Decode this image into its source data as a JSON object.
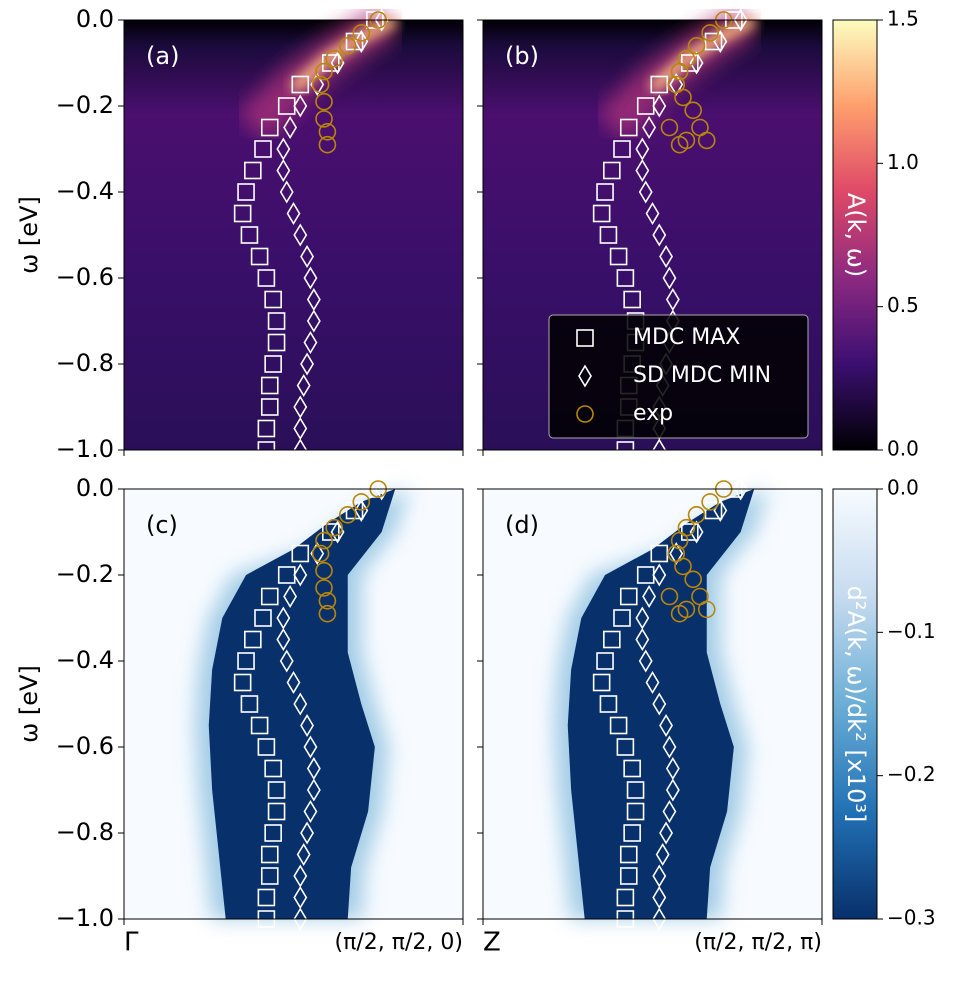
{
  "chart_data": [
    {
      "type": "scatter",
      "panel_label": "(a)",
      "ylabel": "ω [eV]",
      "background": "magma",
      "xlim": [
        0,
        1
      ],
      "xticks": [
        0,
        1
      ],
      "ylim": [
        -1,
        0
      ],
      "yticks": [
        {
          "value": 0,
          "label": "0.0"
        },
        {
          "value": -0.2,
          "label": "−0.2"
        },
        {
          "value": -0.4,
          "label": "−0.4"
        },
        {
          "value": -0.6,
          "label": "−0.6"
        },
        {
          "value": -0.8,
          "label": "−0.8"
        },
        {
          "value": -1,
          "label": "−1.0"
        }
      ],
      "series": [
        {
          "marker": "square",
          "color": "#ffffff",
          "x": [
            0.74,
            0.68,
            0.61,
            0.52,
            0.48,
            0.43,
            0.41,
            0.38,
            0.36,
            0.35,
            0.37,
            0.4,
            0.42,
            0.44,
            0.45,
            0.45,
            0.44,
            0.43,
            0.43,
            0.42,
            0.42
          ],
          "values": [
            0,
            -0.05,
            -0.1,
            -0.15,
            -0.2,
            -0.25,
            -0.3,
            -0.35,
            -0.4,
            -0.45,
            -0.5,
            -0.55,
            -0.6,
            -0.65,
            -0.7,
            -0.75,
            -0.8,
            -0.85,
            -0.9,
            -0.95,
            -1
          ]
        },
        {
          "marker": "diamond",
          "color": "#ffffff",
          "x": [
            0.76,
            0.7,
            0.63,
            0.57,
            0.52,
            0.49,
            0.47,
            0.47,
            0.48,
            0.5,
            0.52,
            0.54,
            0.55,
            0.56,
            0.56,
            0.55,
            0.54,
            0.53,
            0.52,
            0.52,
            0.52
          ],
          "values": [
            0,
            -0.05,
            -0.1,
            -0.15,
            -0.2,
            -0.25,
            -0.3,
            -0.35,
            -0.4,
            -0.45,
            -0.5,
            -0.55,
            -0.6,
            -0.65,
            -0.7,
            -0.75,
            -0.8,
            -0.85,
            -0.9,
            -0.95,
            -1
          ]
        },
        {
          "marker": "circle",
          "color": "#b8860b",
          "x": [
            0.75,
            0.7,
            0.66,
            0.62,
            0.59,
            0.58,
            0.59,
            0.59,
            0.6,
            0.6
          ],
          "values": [
            0,
            -0.03,
            -0.06,
            -0.09,
            -0.12,
            -0.15,
            -0.19,
            -0.23,
            -0.26,
            -0.29
          ]
        }
      ]
    },
    {
      "type": "scatter",
      "panel_label": "(b)",
      "background": "magma",
      "legend": "lower right",
      "xlim": [
        0,
        1
      ],
      "xticks": [
        0,
        1
      ],
      "ylim": [
        -1,
        0
      ],
      "yticks": [
        0,
        -0.2,
        -0.4,
        -0.6,
        -0.8,
        -1
      ],
      "series": [
        {
          "name": "MDC MAX",
          "marker": "square",
          "color": "#ffffff",
          "x": [
            0.74,
            0.68,
            0.61,
            0.52,
            0.48,
            0.43,
            0.41,
            0.38,
            0.36,
            0.35,
            0.37,
            0.4,
            0.42,
            0.44,
            0.45,
            0.45,
            0.44,
            0.43,
            0.43,
            0.42,
            0.42
          ],
          "values": [
            0,
            -0.05,
            -0.1,
            -0.15,
            -0.2,
            -0.25,
            -0.3,
            -0.35,
            -0.4,
            -0.45,
            -0.5,
            -0.55,
            -0.6,
            -0.65,
            -0.7,
            -0.75,
            -0.8,
            -0.85,
            -0.9,
            -0.95,
            -1
          ]
        },
        {
          "name": "SD MDC MIN",
          "marker": "diamond",
          "color": "#ffffff",
          "x": [
            0.76,
            0.7,
            0.63,
            0.57,
            0.52,
            0.49,
            0.47,
            0.47,
            0.48,
            0.5,
            0.52,
            0.54,
            0.55,
            0.56,
            0.56,
            0.55,
            0.54,
            0.53,
            0.52,
            0.52,
            0.52
          ],
          "values": [
            0,
            -0.05,
            -0.1,
            -0.15,
            -0.2,
            -0.25,
            -0.3,
            -0.35,
            -0.4,
            -0.45,
            -0.5,
            -0.55,
            -0.6,
            -0.65,
            -0.7,
            -0.75,
            -0.8,
            -0.85,
            -0.9,
            -0.95,
            -1
          ]
        },
        {
          "name": "exp",
          "marker": "circle",
          "color": "#b8860b",
          "x": [
            0.71,
            0.67,
            0.63,
            0.6,
            0.58,
            0.57,
            0.59,
            0.62,
            0.55,
            0.64,
            0.6,
            0.66,
            0.58
          ],
          "values": [
            0,
            -0.03,
            -0.06,
            -0.09,
            -0.12,
            -0.15,
            -0.18,
            -0.21,
            -0.25,
            -0.25,
            -0.28,
            -0.28,
            -0.29
          ]
        }
      ]
    },
    {
      "type": "scatter",
      "panel_label": "(c)",
      "ylabel": "ω [eV]",
      "background": "blues",
      "xlim": [
        0,
        1
      ],
      "xticks": [
        {
          "value": 0,
          "label": "Γ"
        },
        {
          "value": 1,
          "label": "(π/2, π/2, 0)"
        }
      ],
      "ylim": [
        -1,
        0
      ],
      "yticks": [
        {
          "value": 0,
          "label": "0.0"
        },
        {
          "value": -0.2,
          "label": "−0.2"
        },
        {
          "value": -0.4,
          "label": "−0.4"
        },
        {
          "value": -0.6,
          "label": "−0.6"
        },
        {
          "value": -0.8,
          "label": "−0.8"
        },
        {
          "value": -1,
          "label": "−1.0"
        }
      ],
      "series": [
        {
          "marker": "square",
          "color": "#ffffff",
          "x": [
            0.74,
            0.68,
            0.61,
            0.52,
            0.48,
            0.43,
            0.41,
            0.38,
            0.36,
            0.35,
            0.37,
            0.4,
            0.42,
            0.44,
            0.45,
            0.45,
            0.44,
            0.43,
            0.43,
            0.42,
            0.42
          ],
          "values": [
            0,
            -0.05,
            -0.1,
            -0.15,
            -0.2,
            -0.25,
            -0.3,
            -0.35,
            -0.4,
            -0.45,
            -0.5,
            -0.55,
            -0.6,
            -0.65,
            -0.7,
            -0.75,
            -0.8,
            -0.85,
            -0.9,
            -0.95,
            -1
          ]
        },
        {
          "marker": "diamond",
          "color": "#ffffff",
          "x": [
            0.76,
            0.7,
            0.63,
            0.57,
            0.52,
            0.49,
            0.47,
            0.47,
            0.48,
            0.5,
            0.52,
            0.54,
            0.55,
            0.56,
            0.56,
            0.55,
            0.54,
            0.53,
            0.52,
            0.52,
            0.52
          ],
          "values": [
            0,
            -0.05,
            -0.1,
            -0.15,
            -0.2,
            -0.25,
            -0.3,
            -0.35,
            -0.4,
            -0.45,
            -0.5,
            -0.55,
            -0.6,
            -0.65,
            -0.7,
            -0.75,
            -0.8,
            -0.85,
            -0.9,
            -0.95,
            -1
          ]
        },
        {
          "marker": "circle",
          "color": "#b8860b",
          "x": [
            0.75,
            0.7,
            0.66,
            0.62,
            0.59,
            0.58,
            0.59,
            0.59,
            0.6,
            0.6
          ],
          "values": [
            0,
            -0.03,
            -0.06,
            -0.09,
            -0.12,
            -0.15,
            -0.19,
            -0.23,
            -0.26,
            -0.29
          ]
        }
      ]
    },
    {
      "type": "scatter",
      "panel_label": "(d)",
      "background": "blues",
      "xlim": [
        0,
        1
      ],
      "xticks": [
        {
          "value": 0,
          "label": "Z"
        },
        {
          "value": 1,
          "label": "(π/2, π/2, π)"
        }
      ],
      "ylim": [
        -1,
        0
      ],
      "yticks": [
        0,
        -0.2,
        -0.4,
        -0.6,
        -0.8,
        -1
      ],
      "series": [
        {
          "marker": "square",
          "color": "#ffffff",
          "x": [
            0.74,
            0.68,
            0.61,
            0.52,
            0.48,
            0.43,
            0.41,
            0.38,
            0.36,
            0.35,
            0.37,
            0.4,
            0.42,
            0.44,
            0.45,
            0.45,
            0.44,
            0.43,
            0.43,
            0.42,
            0.42
          ],
          "values": [
            0,
            -0.05,
            -0.1,
            -0.15,
            -0.2,
            -0.25,
            -0.3,
            -0.35,
            -0.4,
            -0.45,
            -0.5,
            -0.55,
            -0.6,
            -0.65,
            -0.7,
            -0.75,
            -0.8,
            -0.85,
            -0.9,
            -0.95,
            -1
          ]
        },
        {
          "marker": "diamond",
          "color": "#ffffff",
          "x": [
            0.76,
            0.7,
            0.63,
            0.57,
            0.52,
            0.49,
            0.47,
            0.47,
            0.48,
            0.5,
            0.52,
            0.54,
            0.55,
            0.56,
            0.56,
            0.55,
            0.54,
            0.53,
            0.52,
            0.52,
            0.52
          ],
          "values": [
            0,
            -0.05,
            -0.1,
            -0.15,
            -0.2,
            -0.25,
            -0.3,
            -0.35,
            -0.4,
            -0.45,
            -0.5,
            -0.55,
            -0.6,
            -0.65,
            -0.7,
            -0.75,
            -0.8,
            -0.85,
            -0.9,
            -0.95,
            -1
          ]
        },
        {
          "marker": "circle",
          "color": "#b8860b",
          "x": [
            0.71,
            0.67,
            0.63,
            0.6,
            0.58,
            0.57,
            0.59,
            0.62,
            0.55,
            0.64,
            0.6,
            0.66,
            0.58
          ],
          "values": [
            0,
            -0.03,
            -0.06,
            -0.09,
            -0.12,
            -0.15,
            -0.18,
            -0.21,
            -0.25,
            -0.25,
            -0.28,
            -0.28,
            -0.29
          ]
        }
      ]
    },
    {
      "type": "colorbar",
      "label": "A(k, ω)",
      "colors": [
        "#000004",
        "#3b0f70",
        "#8c2981",
        "#de4968",
        "#fe9f6d",
        "#fcfdbf"
      ],
      "ylim": [
        0,
        1.5
      ],
      "yticks": [
        {
          "value": 0,
          "label": "0.0"
        },
        0.5,
        {
          "value": 1,
          "label": "1.0"
        },
        1.5
      ]
    },
    {
      "type": "colorbar",
      "label": "d²A(k, ω)/dk² [x10³]",
      "colors": [
        "#08306b",
        "#2171b5",
        "#6baed6",
        "#c6dbef",
        "#f7fbff"
      ],
      "ylim": [
        -0.3,
        0
      ],
      "yticks": [
        {
          "value": 0,
          "label": "0.0"
        },
        {
          "value": -0.1,
          "label": "−0.1"
        },
        {
          "value": -0.2,
          "label": "−0.2"
        },
        {
          "value": -0.3,
          "label": "−0.3"
        }
      ]
    }
  ]
}
